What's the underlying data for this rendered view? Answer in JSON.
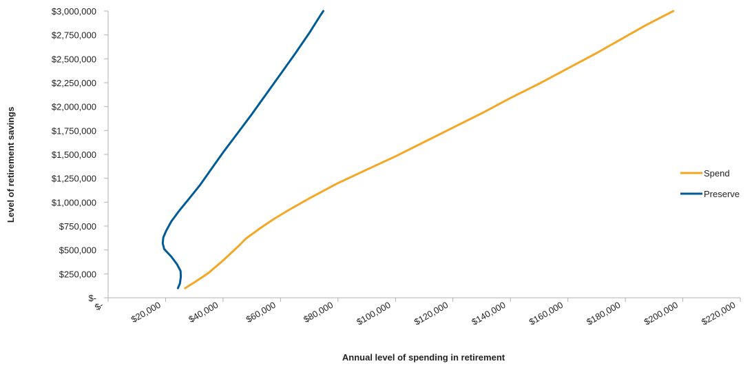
{
  "chart_data": {
    "type": "line",
    "title": "",
    "xlabel": "Annual level of spending in retirement",
    "ylabel": "Level of retirement savings",
    "xlim": [
      0,
      220000
    ],
    "ylim": [
      0,
      3000000
    ],
    "x_ticks": [
      0,
      20000,
      40000,
      60000,
      80000,
      100000,
      120000,
      140000,
      160000,
      180000,
      200000,
      220000
    ],
    "x_tick_labels": [
      "$-",
      "$20,000",
      "$40,000",
      "$60,000",
      "$80,000",
      "$100,000",
      "$120,000",
      "$140,000",
      "$160,000",
      "$180,000",
      "$200,000",
      "$220,000"
    ],
    "y_ticks": [
      0,
      250000,
      500000,
      750000,
      1000000,
      1250000,
      1500000,
      1750000,
      2000000,
      2250000,
      2500000,
      2750000,
      3000000
    ],
    "y_tick_labels": [
      "$-",
      "$250,000",
      "$500,000",
      "$750,000",
      "$1,000,000",
      "$1,250,000",
      "$1,500,000",
      "$1,750,000",
      "$2,000,000",
      "$2,250,000",
      "$2,500,000",
      "$2,750,000",
      "$3,000,000"
    ],
    "grid": false,
    "legend_position": "right",
    "series": [
      {
        "name": "Spend",
        "color": "#F5A623",
        "points": [
          [
            26800,
            100000
          ],
          [
            30500,
            170000
          ],
          [
            35000,
            260000
          ],
          [
            40000,
            390000
          ],
          [
            45000,
            530000
          ],
          [
            48000,
            620000
          ],
          [
            53000,
            730000
          ],
          [
            58000,
            830000
          ],
          [
            63000,
            920000
          ],
          [
            70000,
            1040000
          ],
          [
            80000,
            1200000
          ],
          [
            90000,
            1340000
          ],
          [
            100000,
            1480000
          ],
          [
            110000,
            1630000
          ],
          [
            120000,
            1780000
          ],
          [
            130000,
            1930000
          ],
          [
            140000,
            2090000
          ],
          [
            150000,
            2240000
          ],
          [
            160000,
            2400000
          ],
          [
            170000,
            2560000
          ],
          [
            177000,
            2680000
          ],
          [
            187000,
            2850000
          ],
          [
            196700,
            3000000
          ]
        ]
      },
      {
        "name": "Preserve",
        "color": "#005B96",
        "points": [
          [
            24300,
            100000
          ],
          [
            25000,
            150000
          ],
          [
            25300,
            220000
          ],
          [
            25200,
            280000
          ],
          [
            24000,
            350000
          ],
          [
            22000,
            430000
          ],
          [
            19500,
            510000
          ],
          [
            19000,
            570000
          ],
          [
            19200,
            630000
          ],
          [
            20200,
            700000
          ],
          [
            22000,
            800000
          ],
          [
            25000,
            920000
          ],
          [
            28000,
            1030000
          ],
          [
            32000,
            1180000
          ],
          [
            36000,
            1350000
          ],
          [
            40000,
            1520000
          ],
          [
            45000,
            1720000
          ],
          [
            50000,
            1920000
          ],
          [
            55000,
            2130000
          ],
          [
            60000,
            2340000
          ],
          [
            65000,
            2550000
          ],
          [
            70000,
            2770000
          ],
          [
            74000,
            2960000
          ],
          [
            74900,
            3000000
          ]
        ]
      }
    ]
  }
}
